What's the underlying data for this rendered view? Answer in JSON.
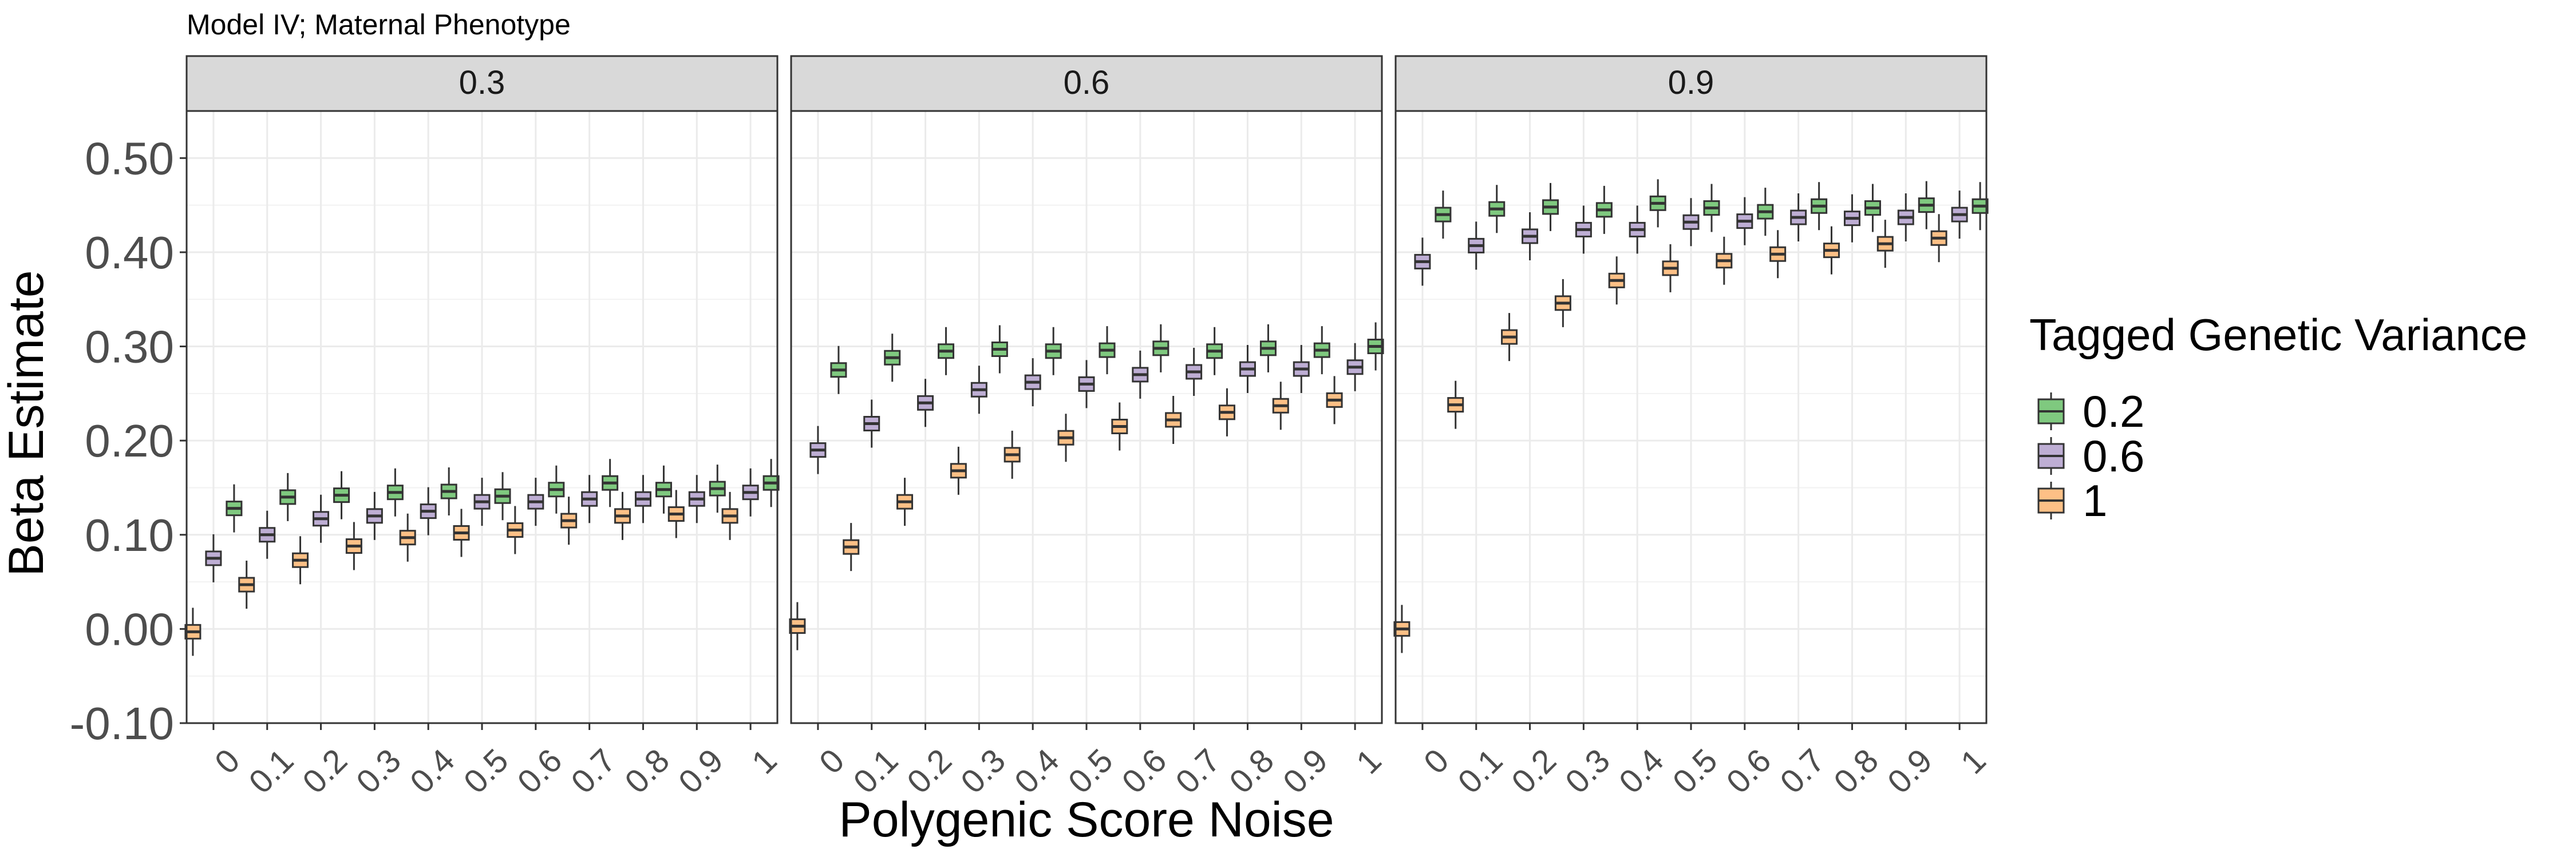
{
  "chart_data": {
    "type": "boxplot",
    "title": "Model IV; Maternal Phenotype",
    "xlabel": "Polygenic Score Noise",
    "ylabel": "Beta Estimate",
    "ylim": [
      -0.1,
      0.55
    ],
    "yticks": [
      -0.1,
      0.0,
      0.1,
      0.2,
      0.3,
      0.4,
      0.5
    ],
    "ytick_labels": [
      "-0.10",
      "0.00",
      "0.10",
      "0.20",
      "0.30",
      "0.40",
      "0.50"
    ],
    "categories": [
      "0",
      "0.1",
      "0.2",
      "0.3",
      "0.4",
      "0.5",
      "0.6",
      "0.7",
      "0.8",
      "0.9",
      "1"
    ],
    "grid": true,
    "legend": {
      "title": "Tagged Genetic Variance",
      "position": "right",
      "entries": [
        "0.2",
        "0.6",
        "1"
      ]
    },
    "series_colors": [
      "#7fc97f",
      "#beaed4",
      "#fdc086"
    ],
    "facets": [
      {
        "label": "0.3",
        "series": [
          {
            "name": "0.2",
            "median": [
              0.128,
              0.14,
              0.142,
              0.145,
              0.146,
              0.141,
              0.148,
              0.155,
              0.148,
              0.149,
              0.155
            ]
          },
          {
            "name": "0.6",
            "median": [
              0.075,
              0.1,
              0.117,
              0.12,
              0.125,
              0.135,
              0.135,
              0.138,
              0.138,
              0.138,
              0.145
            ]
          },
          {
            "name": "1",
            "median": [
              -0.003,
              0.047,
              0.073,
              0.088,
              0.097,
              0.102,
              0.105,
              0.115,
              0.12,
              0.122,
              0.12
            ]
          }
        ]
      },
      {
        "label": "0.6",
        "series": [
          {
            "name": "0.2",
            "median": [
              0.275,
              0.288,
              0.295,
              0.297,
              0.295,
              0.296,
              0.298,
              0.295,
              0.298,
              0.296,
              0.3
            ]
          },
          {
            "name": "0.6",
            "median": [
              0.19,
              0.218,
              0.24,
              0.254,
              0.262,
              0.26,
              0.27,
              0.273,
              0.276,
              0.276,
              0.278
            ]
          },
          {
            "name": "1",
            "median": [
              0.003,
              0.087,
              0.135,
              0.168,
              0.185,
              0.203,
              0.215,
              0.222,
              0.23,
              0.237,
              0.243
            ]
          }
        ]
      },
      {
        "label": "0.9",
        "series": [
          {
            "name": "0.2",
            "median": [
              0.44,
              0.446,
              0.448,
              0.445,
              0.452,
              0.447,
              0.443,
              0.449,
              0.447,
              0.45,
              0.449
            ]
          },
          {
            "name": "0.6",
            "median": [
              0.39,
              0.407,
              0.417,
              0.424,
              0.424,
              0.432,
              0.433,
              0.437,
              0.436,
              0.437,
              0.44
            ]
          },
          {
            "name": "1",
            "median": [
              0.0,
              0.238,
              0.31,
              0.346,
              0.37,
              0.383,
              0.391,
              0.398,
              0.402,
              0.409,
              0.415
            ]
          }
        ]
      }
    ]
  }
}
